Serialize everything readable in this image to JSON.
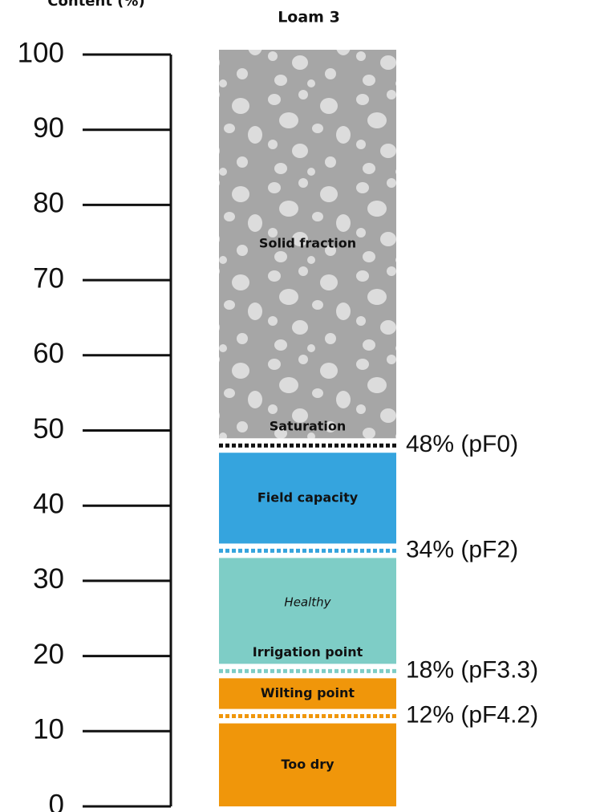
{
  "chart_data": {
    "type": "threshold-column",
    "y_label": "Content (%)",
    "title": "Loam 3",
    "ylim": [
      0,
      100
    ],
    "yticks": [
      0,
      10,
      20,
      30,
      40,
      50,
      60,
      70,
      80,
      90,
      100
    ],
    "thresholds": [
      {
        "value": 12,
        "label": "12% (pF4.2)",
        "color": "#f0960a"
      },
      {
        "value": 18,
        "label": "18% (pF3.3)",
        "color": "#7ecdc6"
      },
      {
        "value": 34,
        "label": "34% (pF2)",
        "color": "#35a4de"
      },
      {
        "value": 48,
        "label": "48% (pF0)",
        "color": "#111111"
      }
    ],
    "zones": [
      {
        "name": "Too dry",
        "color": "#f0960a"
      },
      {
        "name": "Wilting point",
        "color": "#f0960a"
      },
      {
        "name": "Healthy",
        "name_style": "italic",
        "boundary_label": "Irrigation point",
        "color": "#7ecdc6"
      },
      {
        "name": "Field capacity",
        "color": "#35a4de"
      },
      {
        "name": "Solid fraction",
        "boundary_label": "Saturation",
        "color": "#a6a6a6",
        "pattern": "stones"
      }
    ]
  }
}
